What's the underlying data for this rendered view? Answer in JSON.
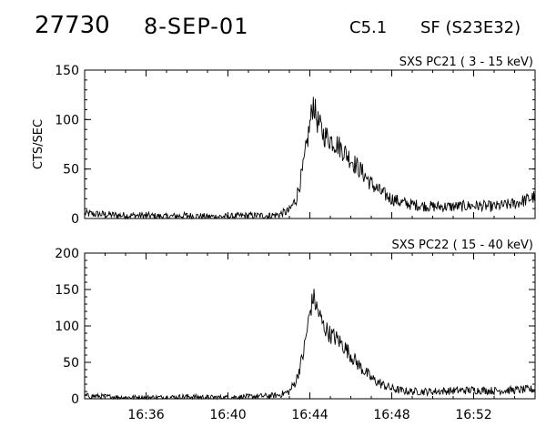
{
  "header": {
    "event_id": "27730",
    "date": "8-SEP-01",
    "flare_class": "C5.1",
    "flare_location": "SF (S23E32)"
  },
  "chart_data": [
    {
      "type": "line",
      "title": "SXS PC21  (  3 - 15 keV)",
      "ylabel": "CTS/SEC",
      "ylim": [
        0,
        150
      ],
      "yticks": [
        0,
        50,
        100,
        150
      ],
      "xlim": [
        "16:33",
        "16:55"
      ],
      "xticks": [],
      "series": [
        {
          "x": [
            "16:33",
            "16:34",
            "16:35",
            "16:36",
            "16:37",
            "16:38",
            "16:39",
            "16:40",
            "16:41",
            "16:42",
            "16:42:30",
            "16:43",
            "16:43:20",
            "16:43:40",
            "16:44",
            "16:44:10",
            "16:44:20",
            "16:44:40",
            "16:45",
            "16:45:20",
            "16:45:40",
            "16:46",
            "16:46:20",
            "16:46:40",
            "16:47",
            "16:47:30",
            "16:48",
            "16:48:30",
            "16:49",
            "16:50",
            "16:51",
            "16:52",
            "16:53",
            "16:54",
            "16:55"
          ],
          "values": [
            5,
            4,
            3,
            3,
            2,
            3,
            2,
            2,
            3,
            3,
            4,
            8,
            20,
            50,
            95,
            118,
            100,
            85,
            80,
            75,
            68,
            60,
            52,
            44,
            35,
            26,
            20,
            16,
            14,
            12,
            12,
            13,
            12,
            15,
            22
          ]
        }
      ]
    },
    {
      "type": "line",
      "title": "SXS PC22  ( 15 - 40 keV)",
      "ylabel": "",
      "ylim": [
        0,
        200
      ],
      "yticks": [
        0,
        50,
        100,
        150,
        200
      ],
      "xlim": [
        "16:33",
        "16:55"
      ],
      "xticks": [
        "16:36",
        "16:40",
        "16:44",
        "16:48",
        "16:52"
      ],
      "series": [
        {
          "x": [
            "16:33",
            "16:34",
            "16:35",
            "16:36",
            "16:37",
            "16:38",
            "16:39",
            "16:40",
            "16:41",
            "16:42",
            "16:42:30",
            "16:43",
            "16:43:20",
            "16:43:40",
            "16:44",
            "16:44:10",
            "16:44:20",
            "16:44:40",
            "16:45",
            "16:45:20",
            "16:45:40",
            "16:46",
            "16:46:20",
            "16:46:40",
            "16:47",
            "16:47:30",
            "16:48",
            "16:48:30",
            "16:49",
            "16:50",
            "16:51",
            "16:52",
            "16:53",
            "16:54",
            "16:55"
          ],
          "values": [
            4,
            3,
            2,
            2,
            2,
            3,
            2,
            2,
            3,
            4,
            5,
            10,
            25,
            60,
            118,
            140,
            125,
            100,
            88,
            82,
            72,
            60,
            48,
            38,
            28,
            20,
            14,
            11,
            10,
            10,
            11,
            12,
            11,
            12,
            13
          ]
        }
      ]
    }
  ]
}
